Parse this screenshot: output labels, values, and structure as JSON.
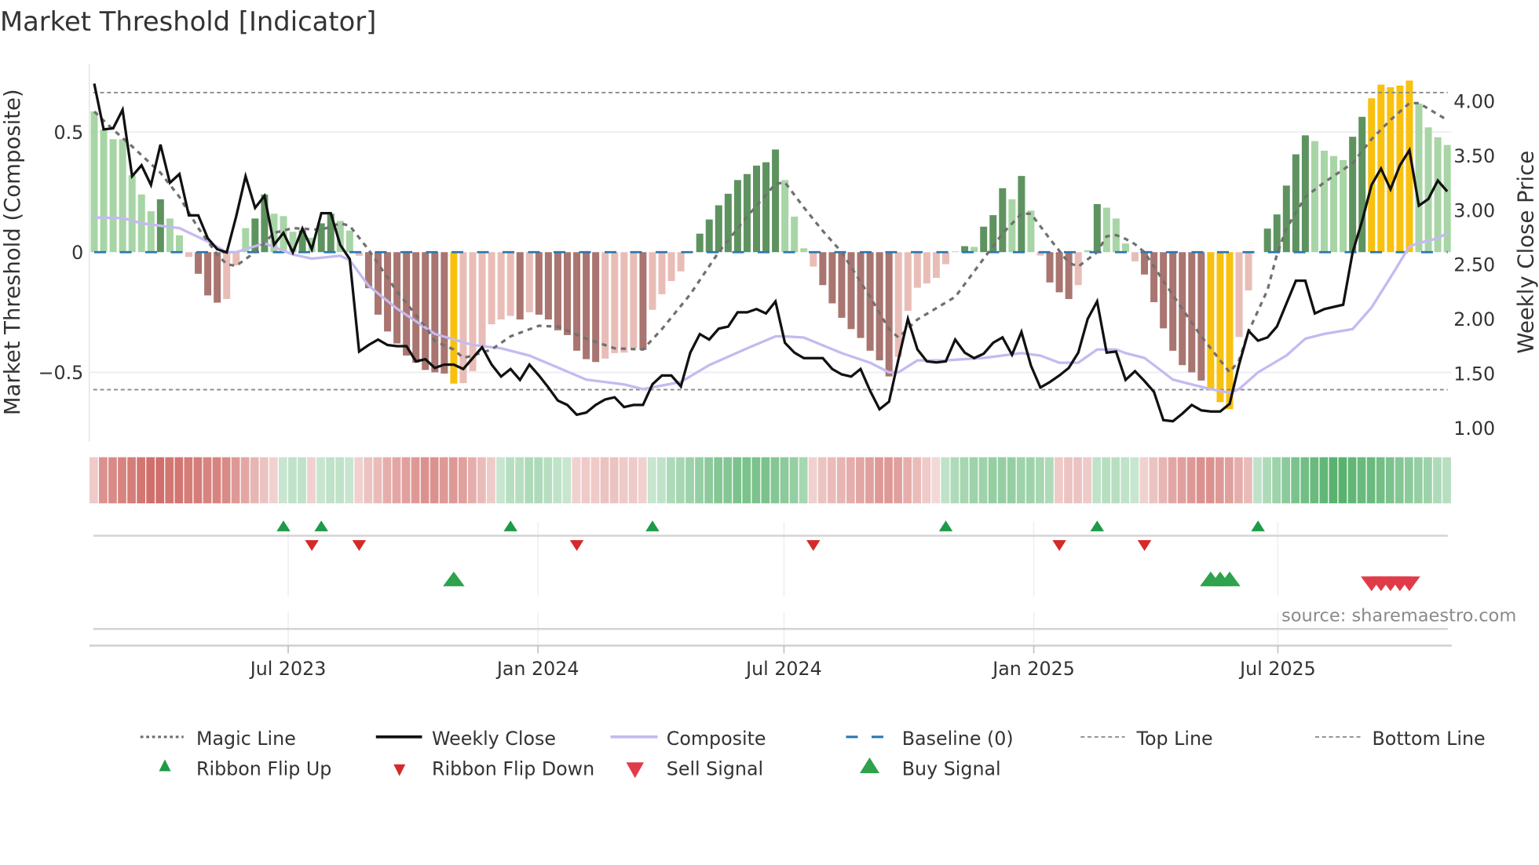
{
  "title": "Market Threshold [Indicator]",
  "source": "source: sharemaestro.com",
  "colors": {
    "light_green": "#a8d5a6",
    "dark_green": "#5e9360",
    "light_red": "#e9bdb7",
    "dark_red": "#a97570",
    "extreme": "#f8c110",
    "composite": "#c4baf0",
    "weekly_close": "#111111",
    "magic": "#707070",
    "baseline": "#2b78b0",
    "threshold": "#8a8a8a",
    "ribbon_red": "#c95a55",
    "ribbon_green": "#37a352",
    "flip_up": "#1e9b48",
    "flip_down": "#d42a2a",
    "sell": "#e03b48",
    "buy": "#2ea24c"
  },
  "chart_data": {
    "type": "bar+line",
    "title": "Market Threshold [Indicator]",
    "ylabel_left": "Market Threshold (Composite)",
    "ylabel_right": "Weekly Close Price",
    "ylim_left": [
      -0.79,
      0.78
    ],
    "ylim_right": [
      0.87,
      4.34
    ],
    "left_ticks": [
      {
        "v": 0.5,
        "label": "0.5"
      },
      {
        "v": 0,
        "label": "0"
      },
      {
        "v": -0.5,
        "label": "−0.5"
      }
    ],
    "right_ticks": [
      {
        "v": 4.0,
        "label": "4.00"
      },
      {
        "v": 3.5,
        "label": "3.50"
      },
      {
        "v": 3.0,
        "label": "3.00"
      },
      {
        "v": 2.5,
        "label": "2.50"
      },
      {
        "v": 2.0,
        "label": "2.00"
      },
      {
        "v": 1.5,
        "label": "1.50"
      },
      {
        "v": 1.0,
        "label": "1.00"
      }
    ],
    "x_ticks": [
      {
        "week": 21.5,
        "label": "Jul 2023"
      },
      {
        "week": 47.9,
        "label": "Jan 2024"
      },
      {
        "week": 73.9,
        "label": "Jul 2024"
      },
      {
        "week": 100.3,
        "label": "Jan 2025"
      },
      {
        "week": 126.1,
        "label": "Jul 2025"
      }
    ],
    "weeks": 144,
    "top_line": 0.664,
    "bottom_line": -0.572,
    "baseline": 0,
    "composite_bars": [
      0.585,
      0.51,
      0.47,
      0.47,
      0.32,
      0.24,
      0.17,
      0.22,
      0.14,
      0.07,
      -0.02,
      -0.09,
      -0.18,
      -0.21,
      -0.195,
      -0.055,
      0.1,
      0.14,
      0.24,
      0.16,
      0.15,
      0.085,
      0.09,
      0.06,
      0.12,
      0.16,
      0.13,
      0.09,
      -0.015,
      -0.15,
      -0.26,
      -0.33,
      -0.38,
      -0.43,
      -0.46,
      -0.49,
      -0.5,
      -0.505,
      -0.547,
      -0.545,
      -0.495,
      -0.39,
      -0.3,
      -0.28,
      -0.265,
      -0.28,
      -0.25,
      -0.26,
      -0.28,
      -0.325,
      -0.345,
      -0.41,
      -0.445,
      -0.457,
      -0.443,
      -0.42,
      -0.418,
      -0.4,
      -0.407,
      -0.24,
      -0.175,
      -0.12,
      -0.08,
      0,
      0.077,
      0.136,
      0.195,
      0.243,
      0.3,
      0.325,
      0.36,
      0.374,
      0.427,
      0.3,
      0.148,
      0.016,
      -0.06,
      -0.137,
      -0.213,
      -0.273,
      -0.32,
      -0.357,
      -0.41,
      -0.45,
      -0.517,
      -0.435,
      -0.244,
      -0.148,
      -0.13,
      -0.107,
      -0.05,
      0.003,
      0.025,
      0.022,
      0.106,
      0.154,
      0.266,
      0.22,
      0.317,
      0.173,
      -0.014,
      -0.126,
      -0.167,
      -0.195,
      -0.137,
      0.008,
      0.2,
      0.185,
      0.14,
      0.036,
      -0.038,
      -0.093,
      -0.208,
      -0.317,
      -0.41,
      -0.47,
      -0.5,
      -0.534,
      -0.57,
      -0.624,
      -0.653,
      -0.353,
      -0.159,
      0,
      0.098,
      0.157,
      0.277,
      0.407,
      0.486,
      0.462,
      0.422,
      0.4,
      0.383,
      0.48,
      0.563,
      0.64,
      0.697,
      0.686,
      0.693,
      0.714,
      0.618,
      0.519,
      0.478,
      0.446
    ],
    "bar_states": "LLLLLLLDLLrRRRrrLDDLLLDLDDLLrRRRRRRRRRYrrrrrrRrRRRRRRRrrrrRrrrrLDDDDDDDDDLLLrRRRRRRRRrrrrrrLDLDDDLDLrRRRrLDLLLrRRRRRRRYYYrrLDDDDDLLLLDDYYYYYLLLL",
    "bar_state_legend": {
      "L": "positive falling",
      "D": "positive rising",
      "r": "negative rising",
      "R": "negative falling",
      "Y": "beyond threshold"
    },
    "weekly_close": [
      4.16,
      3.74,
      3.75,
      3.92,
      3.31,
      3.41,
      3.23,
      3.6,
      3.25,
      3.33,
      2.95,
      2.95,
      2.74,
      2.64,
      2.61,
      2.94,
      3.31,
      3.02,
      3.13,
      2.68,
      2.79,
      2.61,
      2.83,
      2.64,
      2.97,
      2.97,
      2.68,
      2.55,
      1.7,
      1.76,
      1.81,
      1.76,
      1.75,
      1.75,
      1.61,
      1.63,
      1.55,
      1.58,
      1.58,
      1.54,
      1.64,
      1.74,
      1.58,
      1.47,
      1.54,
      1.44,
      1.58,
      1.48,
      1.37,
      1.25,
      1.21,
      1.12,
      1.14,
      1.21,
      1.26,
      1.28,
      1.19,
      1.21,
      1.21,
      1.4,
      1.48,
      1.48,
      1.38,
      1.69,
      1.86,
      1.81,
      1.91,
      1.93,
      2.06,
      2.06,
      2.09,
      2.05,
      2.16,
      1.78,
      1.69,
      1.64,
      1.64,
      1.64,
      1.54,
      1.49,
      1.47,
      1.54,
      1.34,
      1.17,
      1.24,
      1.63,
      2.0,
      1.72,
      1.61,
      1.6,
      1.61,
      1.81,
      1.69,
      1.64,
      1.68,
      1.78,
      1.83,
      1.67,
      1.88,
      1.57,
      1.37,
      1.42,
      1.48,
      1.55,
      1.69,
      2.0,
      2.16,
      1.69,
      1.7,
      1.44,
      1.52,
      1.43,
      1.33,
      1.07,
      1.06,
      1.13,
      1.21,
      1.16,
      1.15,
      1.15,
      1.22,
      1.58,
      1.89,
      1.8,
      1.83,
      1.93,
      2.14,
      2.35,
      2.35,
      2.05,
      2.09,
      2.11,
      2.13,
      2.61,
      2.9,
      3.23,
      3.38,
      3.19,
      3.41,
      3.55,
      3.04,
      3.1,
      3.27,
      3.17
    ],
    "composite_line": [
      [
        1,
        0.144
      ],
      [
        4,
        0.142
      ],
      [
        6,
        0.12
      ],
      [
        8,
        0.11
      ],
      [
        10,
        0.1
      ],
      [
        13,
        0.044
      ],
      [
        15,
        0
      ],
      [
        16,
        0
      ],
      [
        19,
        0.037
      ],
      [
        22,
        -0.01
      ],
      [
        24,
        -0.027
      ],
      [
        27,
        -0.015
      ],
      [
        28,
        -0.033
      ],
      [
        30,
        -0.14
      ],
      [
        33,
        -0.235
      ],
      [
        37,
        -0.34
      ],
      [
        41,
        -0.386
      ],
      [
        44,
        -0.4
      ],
      [
        47,
        -0.43
      ],
      [
        50,
        -0.48
      ],
      [
        53,
        -0.53
      ],
      [
        57,
        -0.55
      ],
      [
        59,
        -0.57
      ],
      [
        63,
        -0.54
      ],
      [
        66,
        -0.47
      ],
      [
        70,
        -0.4
      ],
      [
        73,
        -0.35
      ],
      [
        74,
        -0.35
      ],
      [
        76,
        -0.355
      ],
      [
        80,
        -0.42
      ],
      [
        83,
        -0.46
      ],
      [
        85,
        -0.5
      ],
      [
        86,
        -0.5
      ],
      [
        88,
        -0.45
      ],
      [
        91,
        -0.45
      ],
      [
        95,
        -0.44
      ],
      [
        99,
        -0.42
      ],
      [
        101,
        -0.43
      ],
      [
        103,
        -0.46
      ],
      [
        105,
        -0.46
      ],
      [
        107,
        -0.405
      ],
      [
        109,
        -0.405
      ],
      [
        110,
        -0.42
      ],
      [
        112,
        -0.44
      ],
      [
        113,
        -0.47
      ],
      [
        115,
        -0.53
      ],
      [
        117,
        -0.55
      ],
      [
        119,
        -0.57
      ],
      [
        121,
        -0.585
      ],
      [
        122,
        -0.57
      ],
      [
        124,
        -0.5
      ],
      [
        127,
        -0.43
      ],
      [
        129,
        -0.36
      ],
      [
        131,
        -0.34
      ],
      [
        134,
        -0.32
      ],
      [
        136,
        -0.23
      ],
      [
        138,
        -0.105
      ],
      [
        140,
        0.024
      ],
      [
        141,
        0.038
      ],
      [
        143,
        0.057
      ],
      [
        144,
        0.08
      ]
    ],
    "magic_line": [
      [
        1,
        0.585
      ],
      [
        3,
        0.51
      ],
      [
        5,
        0.44
      ],
      [
        8,
        0.33
      ],
      [
        10,
        0.23
      ],
      [
        12,
        0.1
      ],
      [
        14,
        -0.01
      ],
      [
        15,
        -0.05
      ],
      [
        16,
        -0.057
      ],
      [
        18,
        0
      ],
      [
        20,
        0.08
      ],
      [
        22,
        0.1
      ],
      [
        25,
        0.093
      ],
      [
        27,
        0.12
      ],
      [
        28,
        0.11
      ],
      [
        30,
        0.01
      ],
      [
        33,
        -0.164
      ],
      [
        36,
        -0.31
      ],
      [
        37,
        -0.37
      ],
      [
        39,
        -0.405
      ],
      [
        40,
        -0.44
      ],
      [
        41,
        -0.43
      ],
      [
        43,
        -0.405
      ],
      [
        45,
        -0.35
      ],
      [
        48,
        -0.306
      ],
      [
        50,
        -0.31
      ],
      [
        53,
        -0.36
      ],
      [
        56,
        -0.4
      ],
      [
        59,
        -0.405
      ],
      [
        61,
        -0.32
      ],
      [
        64,
        -0.175
      ],
      [
        67,
        0
      ],
      [
        70,
        0.148
      ],
      [
        73,
        0.284
      ],
      [
        74,
        0.29
      ],
      [
        76,
        0.186
      ],
      [
        78,
        0.088
      ],
      [
        80,
        0
      ],
      [
        83,
        -0.186
      ],
      [
        85,
        -0.32
      ],
      [
        86,
        -0.355
      ],
      [
        88,
        -0.28
      ],
      [
        92,
        -0.186
      ],
      [
        95,
        -0.027
      ],
      [
        97,
        0.077
      ],
      [
        99,
        0.16
      ],
      [
        100,
        0.16
      ],
      [
        102,
        0.055
      ],
      [
        104,
        -0.044
      ],
      [
        105,
        -0.06
      ],
      [
        107,
        0
      ],
      [
        108,
        0.066
      ],
      [
        109,
        0.071
      ],
      [
        110,
        0.055
      ],
      [
        111,
        0.033
      ],
      [
        112,
        0
      ],
      [
        114,
        -0.12
      ],
      [
        116,
        -0.236
      ],
      [
        118,
        -0.35
      ],
      [
        120,
        -0.45
      ],
      [
        121,
        -0.5
      ],
      [
        122,
        -0.45
      ],
      [
        123,
        -0.33
      ],
      [
        125,
        -0.157
      ],
      [
        126,
        -0.01
      ],
      [
        127,
        0.098
      ],
      [
        129,
        0.23
      ],
      [
        131,
        0.29
      ],
      [
        134,
        0.37
      ],
      [
        136,
        0.47
      ],
      [
        138,
        0.55
      ],
      [
        140,
        0.62
      ],
      [
        141,
        0.62
      ],
      [
        144,
        0.55
      ]
    ],
    "ribbon": [
      -0.2,
      -0.6,
      -0.65,
      -0.7,
      -0.75,
      -0.8,
      -0.85,
      -0.85,
      -0.8,
      -0.8,
      -0.75,
      -0.75,
      -0.7,
      -0.7,
      -0.65,
      -0.55,
      -0.45,
      -0.35,
      -0.25,
      -0.15,
      0.15,
      0.2,
      0.2,
      -0.15,
      0.15,
      0.2,
      0.2,
      0.15,
      -0.15,
      -0.25,
      -0.3,
      -0.4,
      -0.45,
      -0.5,
      -0.55,
      -0.6,
      -0.6,
      -0.55,
      -0.55,
      -0.5,
      -0.4,
      -0.3,
      -0.2,
      0.15,
      0.25,
      0.25,
      0.3,
      0.3,
      0.25,
      0.2,
      0.15,
      -0.15,
      -0.2,
      -0.2,
      -0.25,
      -0.25,
      -0.2,
      -0.2,
      -0.15,
      0.15,
      0.2,
      0.3,
      0.35,
      0.4,
      0.45,
      0.5,
      0.55,
      0.55,
      0.6,
      0.6,
      0.6,
      0.6,
      0.55,
      0.5,
      0.45,
      0.35,
      -0.15,
      -0.25,
      -0.3,
      -0.35,
      -0.4,
      -0.45,
      -0.5,
      -0.55,
      -0.55,
      -0.5,
      -0.4,
      -0.3,
      -0.2,
      -0.1,
      0.2,
      0.3,
      0.35,
      0.4,
      0.4,
      0.45,
      0.45,
      0.45,
      0.4,
      0.4,
      0.35,
      0.3,
      -0.2,
      -0.25,
      -0.25,
      -0.2,
      0.2,
      0.25,
      0.25,
      0.2,
      0.15,
      -0.15,
      -0.25,
      -0.35,
      -0.45,
      -0.5,
      -0.55,
      -0.6,
      -0.6,
      -0.55,
      -0.5,
      -0.4,
      -0.3,
      0.2,
      0.3,
      0.4,
      0.5,
      0.6,
      0.65,
      0.7,
      0.75,
      0.8,
      0.8,
      0.75,
      0.7,
      0.7,
      0.65,
      0.6,
      0.55,
      0.5,
      0.45,
      0.4,
      0.3,
      0.25
    ],
    "ribbon_flip_up_weeks": [
      21,
      25,
      45,
      60,
      91,
      107,
      124
    ],
    "ribbon_flip_down_weeks": [
      24,
      29,
      52,
      77,
      103,
      112
    ],
    "buy_signal_weeks": [
      39,
      119,
      120,
      121
    ],
    "sell_signal_weeks": [
      136,
      137,
      138,
      139,
      140
    ]
  },
  "legend": {
    "magic": "Magic Line",
    "close": "Weekly Close",
    "composite": "Composite",
    "baseline": "Baseline (0)",
    "top": "Top Line",
    "bottom": "Bottom Line",
    "flip_up": "Ribbon Flip Up",
    "flip_down": "Ribbon Flip Down",
    "sell": "Sell Signal",
    "buy": "Buy Signal"
  }
}
